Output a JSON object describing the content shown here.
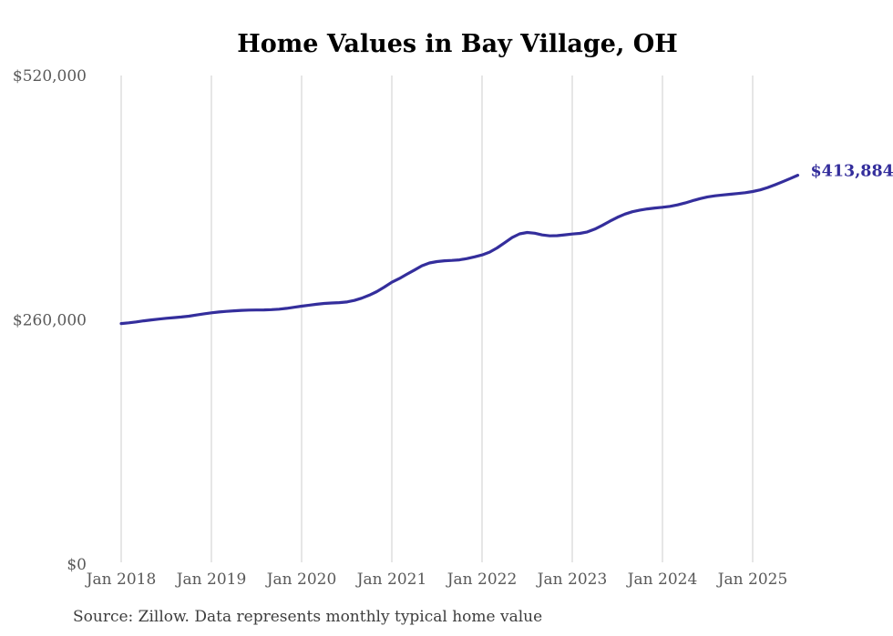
{
  "title": "Home Values in Bay Village, OH",
  "source_note": "Source: Zillow. Data represents monthly typical home value",
  "end_label": "$413,884",
  "colors": {
    "line": "#342e9c",
    "end_label": "#342e9c",
    "title": "#000000",
    "axis_label": "#595959",
    "source": "#3d3d3d",
    "gridline": "#cccccc",
    "background": "#ffffff"
  },
  "chart_data": {
    "type": "line",
    "title": "Home Values in Bay Village, OH",
    "xlabel": "",
    "ylabel": "",
    "ylim": [
      0,
      520000
    ],
    "grid": "vertical-only",
    "legend": "none",
    "x_tick_labels": [
      "Jan 2018",
      "Jan 2019",
      "Jan 2020",
      "Jan 2021",
      "Jan 2022",
      "Jan 2023",
      "Jan 2024",
      "Jan 2025"
    ],
    "x_tick_month_indices": [
      0,
      12,
      24,
      36,
      48,
      60,
      72,
      84
    ],
    "y_ticks": [
      {
        "label": "$0",
        "value": 0
      },
      {
        "label": "$260,000",
        "value": 260000
      },
      {
        "label": "$520,000",
        "value": 520000
      }
    ],
    "series": [
      {
        "name": "Monthly typical home value",
        "start_month": "Jan 2018",
        "end_month": "Jul 2025",
        "last_value": 413884,
        "monthly_values": [
          256000,
          256800,
          257800,
          258900,
          259900,
          260800,
          261600,
          262300,
          263000,
          263900,
          265100,
          266400,
          267500,
          268300,
          269000,
          269600,
          270100,
          270400,
          270500,
          270600,
          270800,
          271300,
          272200,
          273400,
          274500,
          275600,
          276600,
          277400,
          277900,
          278300,
          279000,
          280600,
          283000,
          286200,
          290000,
          294900,
          300000,
          304000,
          308500,
          313000,
          317500,
          320500,
          322000,
          322800,
          323200,
          323800,
          325200,
          327000,
          329000,
          332000,
          336500,
          342000,
          347500,
          351500,
          353000,
          352200,
          350300,
          349400,
          349600,
          350400,
          351300,
          352000,
          353500,
          356500,
          360500,
          365000,
          369000,
          372500,
          375000,
          376800,
          378000,
          379000,
          379800,
          380800,
          382300,
          384300,
          386800,
          389000,
          390800,
          392000,
          392900,
          393600,
          394400,
          395300,
          396500,
          398300,
          400800,
          403800,
          407000,
          410400,
          413884
        ]
      }
    ]
  }
}
